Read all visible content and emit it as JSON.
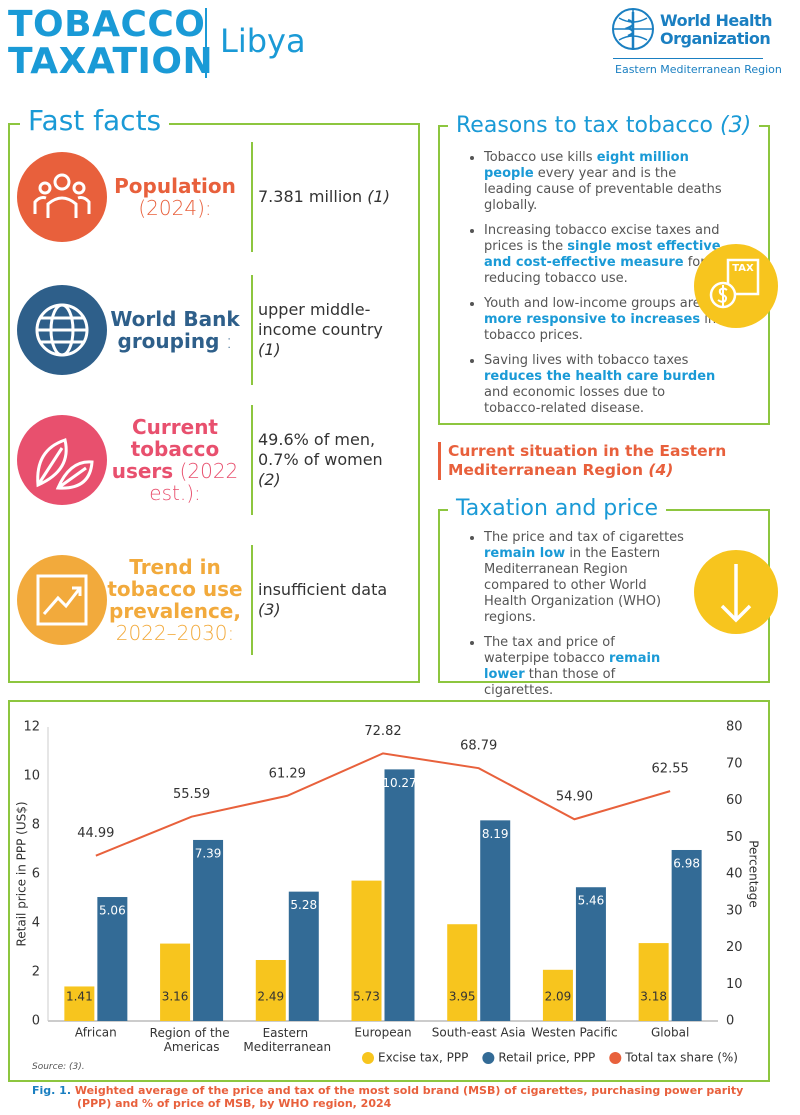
{
  "header": {
    "title": [
      "TOBACCO",
      "TAXATION"
    ],
    "country": "Libya",
    "org": [
      "World Health",
      "Organization"
    ],
    "region": "Eastern Mediterranean Region"
  },
  "fast_facts": {
    "title": "Fast facts",
    "items": [
      {
        "label": "Population",
        "qualifier": "(2024):",
        "value": "7.381 million",
        "ref": "(1)"
      },
      {
        "label": "World Bank grouping",
        "qualifier": ":",
        "value": "upper middle-income country",
        "ref": "(1)"
      },
      {
        "label": "Current tobacco users",
        "qualifier": "(2022 est.):",
        "value": "49.6% of men, 0.7% of women",
        "ref": "(2)"
      },
      {
        "label": "Trend in tobacco use prevalence,",
        "qualifier": "2022–2030:",
        "value": "insufficient data",
        "ref": "(3)"
      }
    ]
  },
  "reasons": {
    "title": "Reasons to tax tobacco",
    "ref": "(3)",
    "icon": "TAX",
    "bullets": [
      [
        "Tobacco use kills ",
        "eight million people",
        " every year and is the leading cause of preventable deaths globally."
      ],
      [
        "Increasing tobacco excise taxes and prices is the ",
        "single most effective and cost-effective measure",
        " for reducing tobacco use."
      ],
      [
        "Youth and low-income groups are ",
        "more responsive to increases",
        " in tobacco prices."
      ],
      [
        "Saving lives with tobacco taxes ",
        "reduces the health care burden",
        " and economic losses due to tobacco-related disease."
      ]
    ]
  },
  "situation": {
    "title": "Current situation in the Eastern Mediterranean Region",
    "ref": "(4)"
  },
  "taxation": {
    "title": "Taxation and price",
    "bullets": [
      [
        "The price and tax of cigarettes ",
        "remain low",
        " in the Eastern Mediterranean Region compared to other World Health Organization (WHO) regions."
      ],
      [
        "The tax and price of waterpipe tobacco ",
        "remain lower",
        " than those of cigarettes."
      ]
    ]
  },
  "chart_data": {
    "type": "bar",
    "categories": [
      "African",
      "Region of the Americas",
      "Eastern Mediterranean",
      "European",
      "South-east Asia",
      "Westen Pacific",
      "Global"
    ],
    "series": [
      {
        "name": "Excise tax, PPP",
        "color": "#f7c51e",
        "values": [
          1.41,
          3.16,
          2.49,
          5.73,
          3.95,
          2.09,
          3.18
        ]
      },
      {
        "name": "Retail price, PPP",
        "color": "#336b96",
        "values": [
          5.06,
          7.39,
          5.28,
          10.27,
          8.19,
          5.46,
          6.98
        ]
      },
      {
        "name": "Total tax share (%)",
        "color": "#e8613c",
        "type": "line",
        "axis": "y2",
        "values": [
          44.99,
          55.59,
          61.29,
          72.82,
          68.79,
          54.9,
          62.55
        ],
        "value_labels": [
          "44.99",
          "55.59",
          "61.29",
          "72.82",
          "68.79",
          "54.90",
          "62.55"
        ]
      }
    ],
    "ylabel": "Retail price in PPP (US$)",
    "y2label": "Percentage",
    "ylim": [
      0,
      12
    ],
    "yticks": [
      0,
      2,
      4,
      6,
      8,
      10,
      12
    ],
    "y2lim": [
      0,
      80
    ],
    "y2ticks": [
      0,
      10,
      20,
      30,
      40,
      50,
      60,
      70,
      80
    ],
    "legend": "bottom-right"
  },
  "source": "Source: (3).",
  "caption": {
    "label": "Fig. 1.",
    "text": "Weighted average of the price and tax of the most sold brand (MSB) of cigarettes, purchasing power parity (PPP) and % of price of MSB, by WHO region, 2024"
  }
}
